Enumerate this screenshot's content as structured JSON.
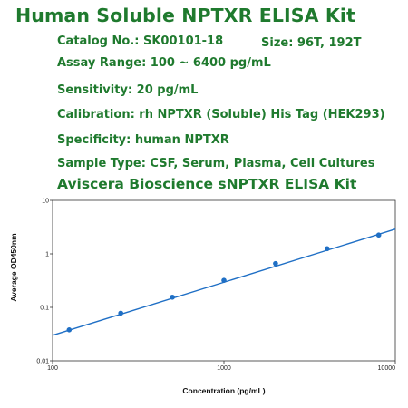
{
  "header": {
    "title": "Human Soluble NPTXR ELISA Kit"
  },
  "info": {
    "catalog": "Catalog No.: SK00101-18",
    "size": "Size: 96T, 192T",
    "assay_range": "Assay Range: 100 ~ 6400 pg/mL",
    "sensitivity": "Sensitivity: 20 pg/mL",
    "calibration": "Calibration: rh NPTXR (Soluble) His Tag (HEK293)",
    "specificity": "Specificity: human NPTXR",
    "sample_type": "Sample Type: CSF, Serum, Plasma, Cell Cultures"
  },
  "colors": {
    "title_green": "#1f7a2e",
    "series_blue": "#1f6fc5",
    "axis": "#333333"
  },
  "chart_data": {
    "type": "scatter",
    "title": "Aviscera Bioscience sNPTXR ELISA Kit",
    "xlabel": "Concentration (pg/mL)",
    "ylabel": "Average OD450nm",
    "x_scale": "log",
    "y_scale": "log",
    "xlim": [
      100,
      10000
    ],
    "ylim": [
      0.01,
      10
    ],
    "x_ticks": [
      100,
      1000,
      10000
    ],
    "x_tick_labels": [
      "100",
      "1000",
      "10000"
    ],
    "y_ticks": [
      10,
      1,
      0.1,
      0.01
    ],
    "y_tick_labels": [
      "10",
      "1",
      "0.1",
      "0.01"
    ],
    "grid": false,
    "series": [
      {
        "points": [
          {
            "x": 125,
            "y": 0.038
          },
          {
            "x": 250,
            "y": 0.078
          },
          {
            "x": 500,
            "y": 0.155
          },
          {
            "x": 1000,
            "y": 0.32
          },
          {
            "x": 2000,
            "y": 0.66
          },
          {
            "x": 4000,
            "y": 1.25
          },
          {
            "x": 8000,
            "y": 2.25
          }
        ],
        "fit_line": {
          "x": [
            100,
            10000
          ],
          "y": [
            0.03,
            2.9
          ]
        }
      }
    ]
  }
}
